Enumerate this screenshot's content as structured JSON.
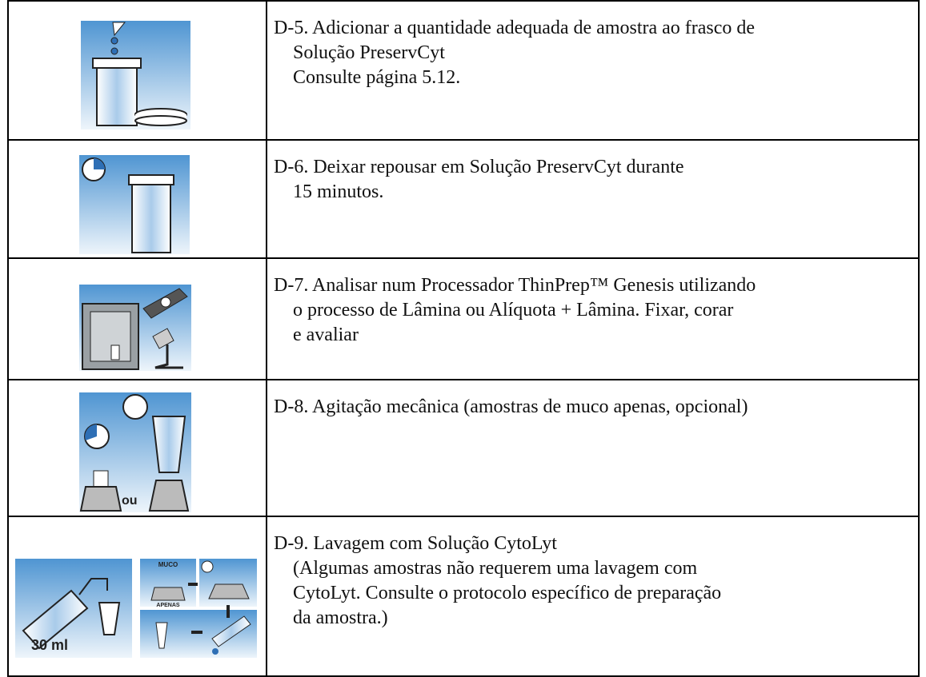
{
  "rows": [
    {
      "lines": [
        "D-5. Adicionar a quantidade adequada de amostra ao frasco de",
        "Solução PreservCyt",
        "Consulte página 5.12."
      ]
    },
    {
      "lines": [
        "D-6. Deixar repousar em Solução PreservCyt durante",
        "15 minutos."
      ]
    },
    {
      "lines": [
        "D-7. Analisar num Processador ThinPrep™ Genesis utilizando",
        "o processo de Lâmina ou Alíquota + Lâmina. Fixar, corar",
        "e avaliar"
      ]
    },
    {
      "lines": [
        "D-8. Agitação mecânica (amostras de muco apenas, opcional)"
      ],
      "icon_labels": [
        "ou"
      ]
    },
    {
      "lines": [
        "D-9. Lavagem com Solução CytoLyt",
        "(Algumas amostras não requerem uma lavagem com",
        "CytoLyt. Consulte o protocolo específico de preparação",
        "da amostra.)"
      ],
      "icon_labels": [
        "30 ml",
        "MUCO",
        "APENAS"
      ]
    }
  ]
}
